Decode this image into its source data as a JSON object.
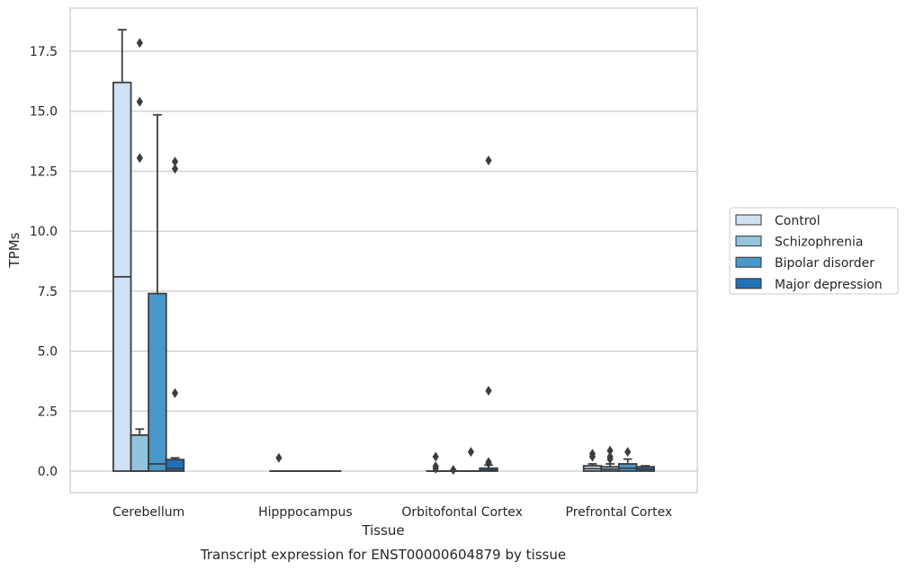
{
  "chart_data": {
    "type": "box",
    "caption": "Transcript expression for ENST00000604879 by tissue",
    "xlabel": "Tissue",
    "ylabel": "TPMs",
    "ylim": [
      -0.9,
      19.3
    ],
    "yticks": [
      0.0,
      2.5,
      5.0,
      7.5,
      10.0,
      12.5,
      15.0,
      17.5
    ],
    "ytick_labels": [
      "0.0",
      "2.5",
      "5.0",
      "7.5",
      "10.0",
      "12.5",
      "15.0",
      "17.5"
    ],
    "grid": "horizontal",
    "legend_position": "right",
    "categories": [
      "Cerebellum",
      "Hipppocampus",
      "Orbitofontal Cortex",
      "Prefrontal Cortex"
    ],
    "series": [
      {
        "name": "Control",
        "color": "#cfe1f2",
        "boxes": [
          {
            "q1": 0.0,
            "median": 8.1,
            "q3": 16.2,
            "whisker_low": 0.0,
            "whisker_high": 18.4,
            "outliers": []
          },
          {
            "q1": 0.0,
            "median": 0.0,
            "q3": 0.0,
            "whisker_low": 0.0,
            "whisker_high": 0.0,
            "outliers": [
              0.55
            ]
          },
          {
            "q1": 0.0,
            "median": 0.0,
            "q3": 0.0,
            "whisker_low": 0.0,
            "whisker_high": 0.0,
            "outliers": [
              0.6,
              0.2,
              0.1
            ]
          },
          {
            "q1": 0.0,
            "median": 0.1,
            "q3": 0.22,
            "whisker_low": 0.0,
            "whisker_high": 0.3,
            "outliers": [
              0.72,
              0.6
            ]
          }
        ]
      },
      {
        "name": "Schizophrenia",
        "color": "#93c4de",
        "boxes": [
          {
            "q1": 0.0,
            "median": 0.0,
            "q3": 1.5,
            "whisker_low": 0.0,
            "whisker_high": 1.75,
            "outliers": [
              17.85,
              15.4,
              13.05
            ]
          },
          {
            "q1": 0.0,
            "median": 0.0,
            "q3": 0.0,
            "whisker_low": 0.0,
            "whisker_high": 0.0,
            "outliers": []
          },
          {
            "q1": 0.0,
            "median": 0.0,
            "q3": 0.0,
            "whisker_low": 0.0,
            "whisker_high": 0.0,
            "outliers": [
              0.05
            ]
          },
          {
            "q1": 0.0,
            "median": 0.08,
            "q3": 0.18,
            "whisker_low": 0.0,
            "whisker_high": 0.3,
            "outliers": [
              0.85,
              0.6,
              0.5
            ]
          }
        ]
      },
      {
        "name": "Bipolar disorder",
        "color": "#4a97c9",
        "boxes": [
          {
            "q1": 0.0,
            "median": 0.3,
            "q3": 7.4,
            "whisker_low": 0.0,
            "whisker_high": 14.85,
            "outliers": []
          },
          {
            "q1": 0.0,
            "median": 0.0,
            "q3": 0.0,
            "whisker_low": 0.0,
            "whisker_high": 0.0,
            "outliers": []
          },
          {
            "q1": 0.0,
            "median": 0.0,
            "q3": 0.0,
            "whisker_low": 0.0,
            "whisker_high": 0.0,
            "outliers": [
              0.8
            ]
          },
          {
            "q1": 0.0,
            "median": 0.12,
            "q3": 0.3,
            "whisker_low": 0.0,
            "whisker_high": 0.5,
            "outliers": [
              0.8
            ]
          }
        ]
      },
      {
        "name": "Major depression",
        "color": "#2171b5",
        "boxes": [
          {
            "q1": 0.0,
            "median": 0.1,
            "q3": 0.48,
            "whisker_low": 0.0,
            "whisker_high": 0.55,
            "outliers": [
              12.9,
              12.6,
              3.25
            ]
          },
          {
            "q1": 0.0,
            "median": 0.0,
            "q3": 0.0,
            "whisker_low": 0.0,
            "whisker_high": 0.0,
            "outliers": []
          },
          {
            "q1": 0.0,
            "median": 0.04,
            "q3": 0.12,
            "whisker_low": 0.0,
            "whisker_high": 0.25,
            "outliers": [
              12.95,
              3.35,
              0.38,
              0.32
            ]
          },
          {
            "q1": 0.0,
            "median": 0.08,
            "q3": 0.18,
            "whisker_low": 0.0,
            "whisker_high": 0.22,
            "outliers": []
          }
        ]
      }
    ]
  }
}
